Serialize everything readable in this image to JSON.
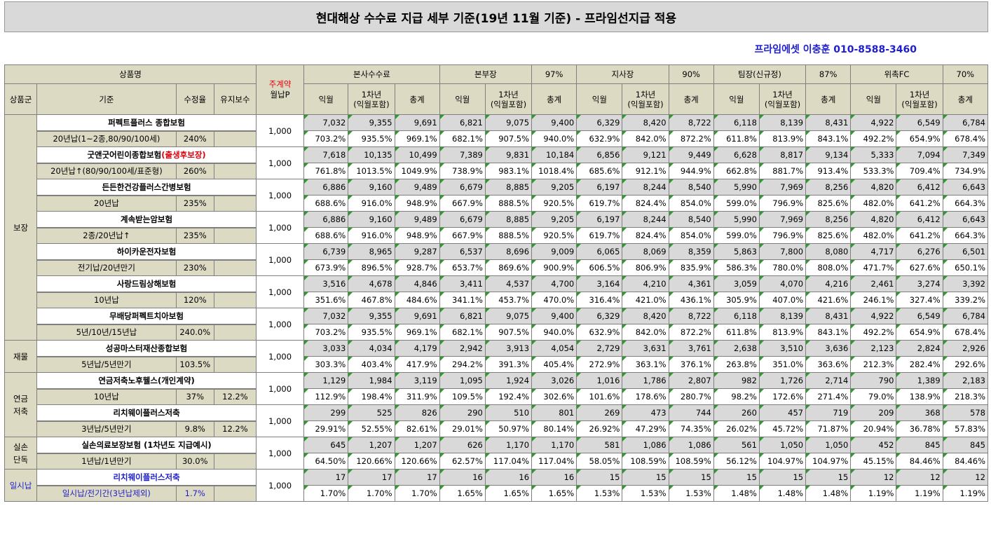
{
  "title": "현대해상 수수료 지급 세부 기준(19년 11월 기준) - 프라임선지급 적용",
  "contact": "프라임에셋 이충훈 010-8588-3460",
  "header": {
    "product_name": "상품명",
    "main_contract_1": "주계약",
    "main_contract_2": "월납P",
    "groups": [
      {
        "name": "본사수수료",
        "pct": ""
      },
      {
        "name": "본부장",
        "pct": "97%"
      },
      {
        "name": "지사장",
        "pct": "90%"
      },
      {
        "name": "팀장(신규정)",
        "pct": "87%"
      },
      {
        "name": "위촉FC",
        "pct": "70%"
      }
    ],
    "category": "상품군",
    "standard": "기준",
    "rate": "수정율",
    "maintenance": "유지보수",
    "col_next_month": "익월",
    "col_first_year_1": "1차년",
    "col_first_year_2": "(익월포함)",
    "col_total": "총계"
  },
  "categories": [
    {
      "label_1": "보장",
      "label_2": "",
      "rows": 7,
      "blue": false
    },
    {
      "label_1": "재물",
      "label_2": "",
      "rows": 1,
      "blue": false
    },
    {
      "label_1": "연금",
      "label_2": "저축",
      "rows": 2,
      "blue": false
    },
    {
      "label_1": "실손",
      "label_2": "단독",
      "rows": 1,
      "blue": false
    },
    {
      "label_1": "일시납",
      "label_2": "",
      "rows": 1,
      "blue": true
    }
  ],
  "products": [
    {
      "name": "퍼펙트플러스 종합보험",
      "name_red": "",
      "term": "20년납(1~2종,80/90/100세)",
      "rate": "240%",
      "maint": "",
      "premium": "1,000",
      "amounts": [
        "7,032",
        "9,355",
        "9,691",
        "6,821",
        "9,075",
        "9,400",
        "6,329",
        "8,420",
        "8,722",
        "6,118",
        "8,139",
        "8,431",
        "4,922",
        "6,549",
        "6,784"
      ],
      "pcts": [
        "703.2%",
        "935.5%",
        "969.1%",
        "682.1%",
        "907.5%",
        "940.0%",
        "632.9%",
        "842.0%",
        "872.2%",
        "611.8%",
        "813.9%",
        "843.1%",
        "492.2%",
        "654.9%",
        "678.4%"
      ]
    },
    {
      "name": "굿앤굿어린이종합보험",
      "name_red": "(출생후보장)",
      "term": "20년납↑(80/90/100세/표준형)",
      "rate": "260%",
      "maint": "",
      "premium": "1,000",
      "amounts": [
        "7,618",
        "10,135",
        "10,499",
        "7,389",
        "9,831",
        "10,184",
        "6,856",
        "9,121",
        "9,449",
        "6,628",
        "8,817",
        "9,134",
        "5,333",
        "7,094",
        "7,349"
      ],
      "pcts": [
        "761.8%",
        "1013.5%",
        "1049.9%",
        "738.9%",
        "983.1%",
        "1018.4%",
        "685.6%",
        "912.1%",
        "944.9%",
        "662.8%",
        "881.7%",
        "913.4%",
        "533.3%",
        "709.4%",
        "734.9%"
      ]
    },
    {
      "name": "든든한건강플러스간병보험",
      "name_red": "",
      "term": "20년납",
      "rate": "235%",
      "maint": "",
      "premium": "1,000",
      "amounts": [
        "6,886",
        "9,160",
        "9,489",
        "6,679",
        "8,885",
        "9,205",
        "6,197",
        "8,244",
        "8,540",
        "5,990",
        "7,969",
        "8,256",
        "4,820",
        "6,412",
        "6,643"
      ],
      "pcts": [
        "688.6%",
        "916.0%",
        "948.9%",
        "667.9%",
        "888.5%",
        "920.5%",
        "619.7%",
        "824.4%",
        "854.0%",
        "599.0%",
        "796.9%",
        "825.6%",
        "482.0%",
        "641.2%",
        "664.3%"
      ]
    },
    {
      "name": "계속받는암보험",
      "name_red": "",
      "term": "2종/20년납↑",
      "rate": "235%",
      "maint": "",
      "premium": "1,000",
      "amounts": [
        "6,886",
        "9,160",
        "9,489",
        "6,679",
        "8,885",
        "9,205",
        "6,197",
        "8,244",
        "8,540",
        "5,990",
        "7,969",
        "8,256",
        "4,820",
        "6,412",
        "6,643"
      ],
      "pcts": [
        "688.6%",
        "916.0%",
        "948.9%",
        "667.9%",
        "888.5%",
        "920.5%",
        "619.7%",
        "824.4%",
        "854.0%",
        "599.0%",
        "796.9%",
        "825.6%",
        "482.0%",
        "641.2%",
        "664.3%"
      ]
    },
    {
      "name": "하이카운전자보험",
      "name_red": "",
      "term": "전기납/20년만기",
      "rate": "230%",
      "maint": "",
      "premium": "1,000",
      "amounts": [
        "6,739",
        "8,965",
        "9,287",
        "6,537",
        "8,696",
        "9,009",
        "6,065",
        "8,069",
        "8,359",
        "5,863",
        "7,800",
        "8,080",
        "4,717",
        "6,276",
        "6,501"
      ],
      "pcts": [
        "673.9%",
        "896.5%",
        "928.7%",
        "653.7%",
        "869.6%",
        "900.9%",
        "606.5%",
        "806.9%",
        "835.9%",
        "586.3%",
        "780.0%",
        "808.0%",
        "471.7%",
        "627.6%",
        "650.1%"
      ]
    },
    {
      "name": "사랑드림상해보험",
      "name_red": "",
      "term": "10년납",
      "rate": "120%",
      "maint": "",
      "premium": "1,000",
      "amounts": [
        "3,516",
        "4,678",
        "4,846",
        "3,411",
        "4,537",
        "4,700",
        "3,164",
        "4,210",
        "4,361",
        "3,059",
        "4,070",
        "4,216",
        "2,461",
        "3,274",
        "3,392"
      ],
      "pcts": [
        "351.6%",
        "467.8%",
        "484.6%",
        "341.1%",
        "453.7%",
        "470.0%",
        "316.4%",
        "421.0%",
        "436.1%",
        "305.9%",
        "407.0%",
        "421.6%",
        "246.1%",
        "327.4%",
        "339.2%"
      ]
    },
    {
      "name": "무배당퍼펙트치아보험",
      "name_red": "",
      "term": "5년/10년/15년납",
      "rate": "240.0%",
      "maint": "",
      "premium": "1,000",
      "amounts": [
        "7,032",
        "9,355",
        "9,691",
        "6,821",
        "9,075",
        "9,400",
        "6,329",
        "8,420",
        "8,722",
        "6,118",
        "8,139",
        "8,431",
        "4,922",
        "6,549",
        "6,784"
      ],
      "pcts": [
        "703.2%",
        "935.5%",
        "969.1%",
        "682.1%",
        "907.5%",
        "940.0%",
        "632.9%",
        "842.0%",
        "872.2%",
        "611.8%",
        "813.9%",
        "843.1%",
        "492.2%",
        "654.9%",
        "678.4%"
      ]
    },
    {
      "name": "성공마스터재산종합보험",
      "name_red": "",
      "term": "5년납/5년만기",
      "rate": "103.5%",
      "maint": "",
      "premium": "1,000",
      "amounts": [
        "3,033",
        "4,034",
        "4,179",
        "2,942",
        "3,913",
        "4,054",
        "2,729",
        "3,631",
        "3,761",
        "2,638",
        "3,510",
        "3,636",
        "2,123",
        "2,824",
        "2,926"
      ],
      "pcts": [
        "303.3%",
        "403.4%",
        "417.9%",
        "294.2%",
        "391.3%",
        "405.4%",
        "272.9%",
        "363.1%",
        "376.1%",
        "263.8%",
        "351.0%",
        "363.6%",
        "212.3%",
        "282.4%",
        "292.6%"
      ]
    },
    {
      "name": "연금저축노후웰스(개인계약)",
      "name_red": "",
      "term": "10년납",
      "rate": "37%",
      "maint": "12.2%",
      "premium": "1,000",
      "amounts": [
        "1,129",
        "1,984",
        "3,119",
        "1,095",
        "1,924",
        "3,026",
        "1,016",
        "1,786",
        "2,807",
        "982",
        "1,726",
        "2,714",
        "790",
        "1,389",
        "2,183"
      ],
      "pcts": [
        "112.9%",
        "198.4%",
        "311.9%",
        "109.5%",
        "192.4%",
        "302.6%",
        "101.6%",
        "178.6%",
        "280.7%",
        "98.2%",
        "172.6%",
        "271.4%",
        "79.0%",
        "138.9%",
        "218.3%"
      ]
    },
    {
      "name": "리치웨이플러스저축",
      "name_red": "",
      "term": "3년납/5년만기",
      "rate": "9.8%",
      "maint": "12.2%",
      "premium": "1,000",
      "amounts": [
        "299",
        "525",
        "826",
        "290",
        "510",
        "801",
        "269",
        "473",
        "744",
        "260",
        "457",
        "719",
        "209",
        "368",
        "578"
      ],
      "pcts": [
        "29.91%",
        "52.55%",
        "82.61%",
        "29.01%",
        "50.97%",
        "80.14%",
        "26.92%",
        "47.29%",
        "74.35%",
        "26.02%",
        "45.72%",
        "71.87%",
        "20.94%",
        "36.78%",
        "57.83%"
      ]
    },
    {
      "name": "실손의료보장보험 (1차년도 지급예시)",
      "name_red": "",
      "term": "1년납/1년만기",
      "rate": "30.0%",
      "maint": "",
      "premium": "1,000",
      "amounts": [
        "645",
        "1,207",
        "1,207",
        "626",
        "1,170",
        "1,170",
        "581",
        "1,086",
        "1,086",
        "561",
        "1,050",
        "1,050",
        "452",
        "845",
        "845"
      ],
      "pcts": [
        "64.50%",
        "120.66%",
        "120.66%",
        "62.57%",
        "117.04%",
        "117.04%",
        "58.05%",
        "108.59%",
        "108.59%",
        "56.12%",
        "104.97%",
        "104.97%",
        "45.15%",
        "84.46%",
        "84.46%"
      ]
    },
    {
      "name": "리치웨이플러스저축",
      "name_red": "",
      "term": "일시납/전기간(3년납제외)",
      "rate": "1.7%",
      "maint": "",
      "premium": "1,000",
      "blue": true,
      "amounts": [
        "17",
        "17",
        "17",
        "16",
        "16",
        "16",
        "15",
        "15",
        "15",
        "15",
        "15",
        "15",
        "12",
        "12",
        "12"
      ],
      "pcts": [
        "1.70%",
        "1.70%",
        "1.70%",
        "1.65%",
        "1.65%",
        "1.65%",
        "1.53%",
        "1.53%",
        "1.53%",
        "1.48%",
        "1.48%",
        "1.48%",
        "1.19%",
        "1.19%",
        "1.19%"
      ]
    }
  ]
}
